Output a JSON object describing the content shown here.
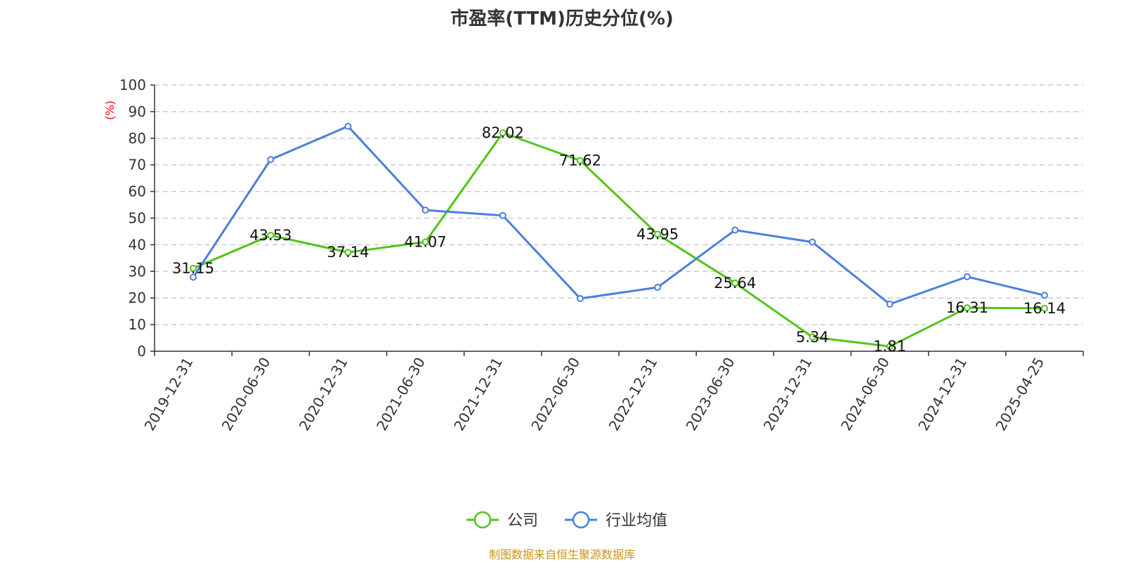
{
  "chart_data": {
    "type": "line",
    "title": "市盈率(TTM)历史分位(%)",
    "ylabel": "(%)",
    "xlabel": "",
    "ylim": [
      0,
      100
    ],
    "yticks": [
      0,
      10,
      20,
      30,
      40,
      50,
      60,
      70,
      80,
      90,
      100
    ],
    "grid": true,
    "legend_position": "bottom-center",
    "categories": [
      "2019-12-31",
      "2020-06-30",
      "2020-12-31",
      "2021-06-30",
      "2021-12-31",
      "2022-06-30",
      "2022-12-31",
      "2023-06-30",
      "2023-12-31",
      "2024-06-30",
      "2024-12-31",
      "2025-04-25"
    ],
    "series": [
      {
        "name": "公司",
        "color": "#52c41a",
        "values": [
          31.15,
          43.53,
          37.14,
          41.07,
          82.02,
          71.62,
          43.95,
          25.64,
          5.34,
          1.81,
          16.31,
          16.14
        ],
        "show_labels": true
      },
      {
        "name": "行业均值",
        "color": "#4a7fdc",
        "values": [
          27.8,
          72.0,
          84.5,
          53.0,
          51.0,
          19.8,
          24.0,
          45.5,
          41.0,
          17.7,
          28.0,
          21.0
        ],
        "show_labels": false
      }
    ]
  },
  "source_note": "制图数据来自恒生聚源数据库"
}
